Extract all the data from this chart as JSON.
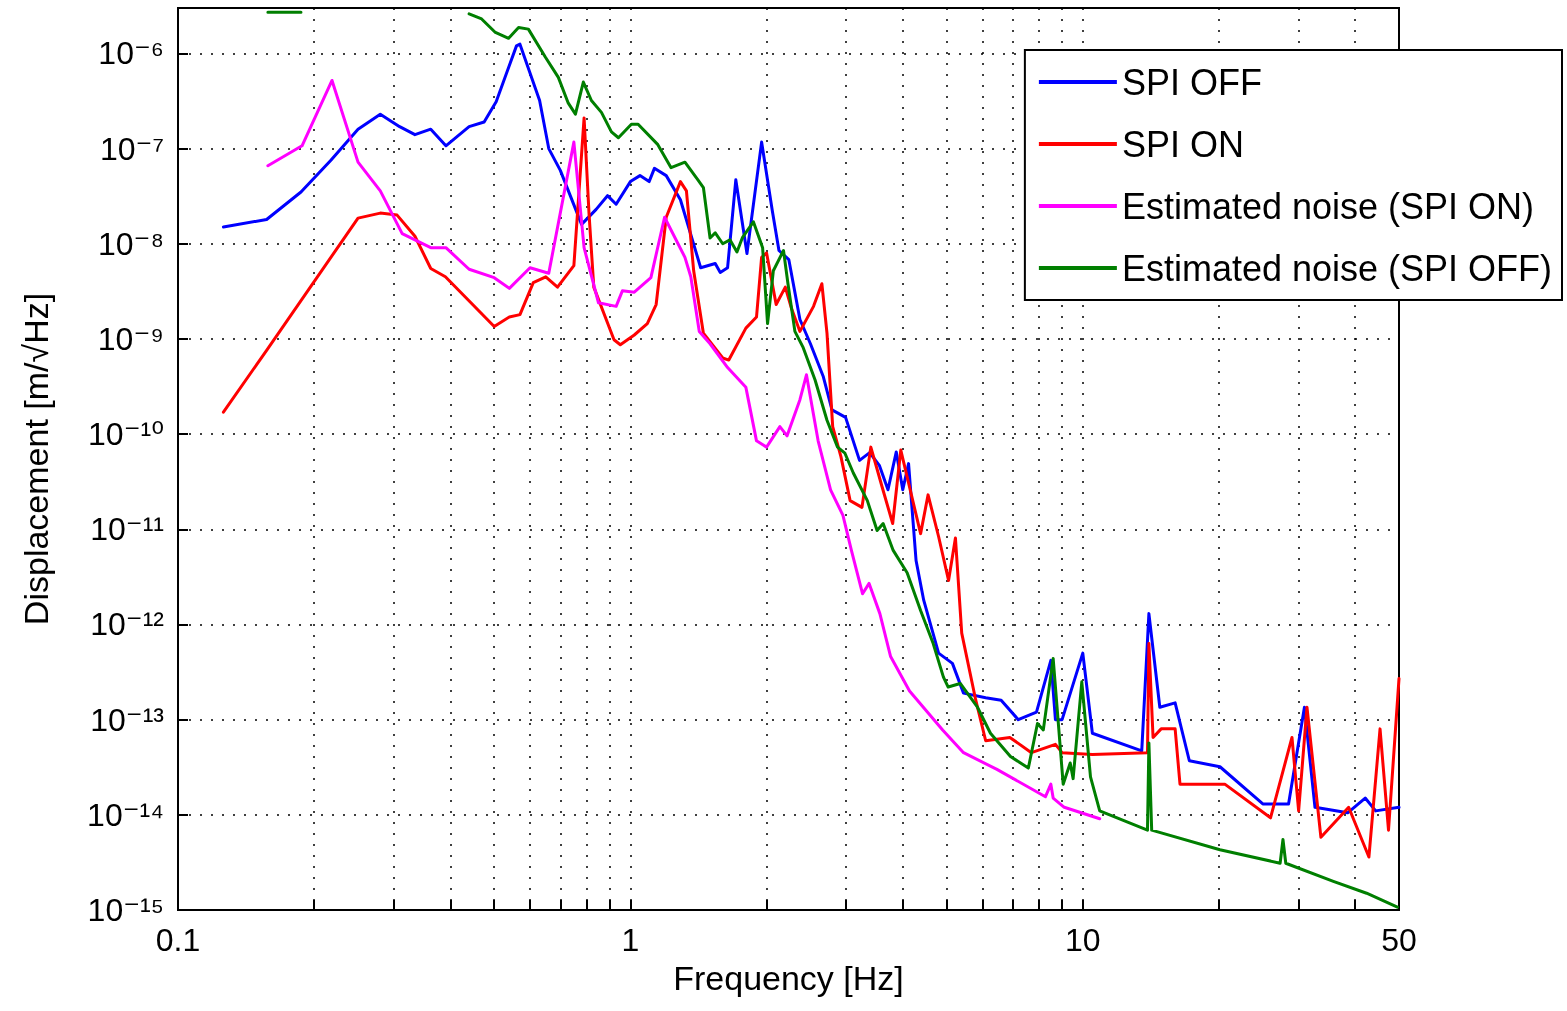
{
  "chart_data": {
    "type": "line",
    "xlabel": "Frequency [Hz]",
    "ylabel": "Displacement [m/√Hz]",
    "log": "xy",
    "grid": true,
    "legend": "top right",
    "marker": "none",
    "line_style": "solid",
    "xlim": [
      0.1,
      50
    ],
    "xticks": [
      0.1,
      {
        "value": 0.2,
        "label": null
      },
      {
        "value": 0.3,
        "label": null
      },
      {
        "value": 0.4,
        "label": null
      },
      {
        "value": 0.5,
        "label": null
      },
      {
        "value": 0.6,
        "label": null
      },
      {
        "value": 0.7,
        "label": null
      },
      {
        "value": 0.8,
        "label": null
      },
      {
        "value": 0.9,
        "label": null
      },
      1,
      {
        "value": 2,
        "label": null
      },
      {
        "value": 3,
        "label": null
      },
      {
        "value": 4,
        "label": null
      },
      {
        "value": 5,
        "label": null
      },
      {
        "value": 6,
        "label": null
      },
      {
        "value": 7,
        "label": null
      },
      {
        "value": 8,
        "label": null
      },
      {
        "value": 9,
        "label": null
      },
      10,
      {
        "value": 20,
        "label": null
      },
      {
        "value": 30,
        "label": null
      },
      {
        "value": 40,
        "label": null
      },
      50
    ],
    "ylim": [
      1e-15,
      3e-06
    ],
    "yticks": [
      {
        "value": 1e-15,
        "label": "10⁻¹⁵"
      },
      {
        "value": 1e-14,
        "label": "10⁻¹⁴"
      },
      {
        "value": 1e-13,
        "label": "10⁻¹³"
      },
      {
        "value": 1e-12,
        "label": "10⁻¹²"
      },
      {
        "value": 1e-11,
        "label": "10⁻¹¹"
      },
      {
        "value": 1e-10,
        "label": "10⁻¹⁰"
      },
      {
        "value": 1e-09,
        "label": "10⁻⁹"
      },
      {
        "value": 1e-08,
        "label": "10⁻⁸"
      },
      {
        "value": 1e-07,
        "label": "10⁻⁷"
      },
      {
        "value": 1e-06,
        "label": "10⁻⁶"
      }
    ],
    "series": [
      {
        "name": "SPI OFF",
        "color": "#0000ff",
        "x": [
          0.126,
          0.157,
          0.187,
          0.218,
          0.25,
          0.28,
          0.309,
          0.334,
          0.362,
          0.391,
          0.44,
          0.475,
          0.505,
          0.56,
          0.57,
          0.63,
          0.66,
          0.7,
          0.78,
          0.84,
          0.89,
          0.93,
          1.0,
          1.05,
          1.1,
          1.13,
          1.2,
          1.29,
          1.43,
          1.54,
          1.58,
          1.64,
          1.71,
          1.81,
          1.95,
          2.06,
          2.13,
          2.24,
          2.37,
          2.5,
          2.67,
          2.79,
          2.99,
          3.21,
          3.38,
          3.55,
          3.71,
          3.87,
          4.0,
          4.12,
          4.28,
          4.45,
          4.8,
          5.15,
          5.45,
          6.1,
          6.6,
          7.2,
          7.9,
          8.5,
          8.7,
          9.0,
          10.0,
          10.5,
          13.5,
          14.0,
          14.8,
          16.0,
          17.2,
          20.1,
          25.0,
          28.5,
          30.9,
          32.6,
          38.5,
          42.1,
          44.4,
          50
        ],
        "values": [
          1.5e-08,
          1.8e-08,
          3.5e-08,
          7.6e-08,
          1.6e-07,
          2.3e-07,
          1.7e-07,
          1.4e-07,
          1.6e-07,
          1.07e-07,
          1.7e-07,
          1.9e-07,
          3.1e-07,
          1.2e-06,
          1.25e-06,
          3.2e-07,
          1e-07,
          5.9e-08,
          1.6e-08,
          2.3e-08,
          3.2e-08,
          2.6e-08,
          4.5e-08,
          5.2e-08,
          4.5e-08,
          6.2e-08,
          5.2e-08,
          2.9e-08,
          5.6e-09,
          6.2e-09,
          5e-09,
          5.6e-09,
          4.7e-08,
          7.9e-09,
          1.17e-07,
          2.2e-08,
          8.5e-09,
          6.8e-09,
          1.6e-09,
          8.9e-10,
          4e-10,
          1.8e-10,
          1.5e-10,
          5.3e-11,
          6.4e-11,
          4.7e-11,
          2.6e-11,
          6.5e-11,
          2.6e-11,
          4.9e-11,
          4.7e-12,
          1.8e-12,
          5e-13,
          3.9e-13,
          1.9e-13,
          1.7e-13,
          1.6e-13,
          1e-13,
          1.2e-13,
          4.2e-13,
          1e-13,
          1e-13,
          5e-13,
          7.2e-14,
          4.7e-14,
          1.3e-12,
          1.35e-13,
          1.5e-13,
          3.7e-14,
          3.2e-14,
          1.3e-14,
          1.3e-14,
          1.35e-13,
          1.2e-14,
          1.05e-14,
          1.5e-14,
          1.1e-14,
          1.2e-14
        ]
      },
      {
        "name": "SPI ON",
        "color": "#ff0000",
        "x": [
          0.126,
          0.157,
          0.25,
          0.28,
          0.305,
          0.334,
          0.362,
          0.39,
          0.5,
          0.54,
          0.57,
          0.61,
          0.65,
          0.69,
          0.75,
          0.79,
          0.81,
          0.83,
          0.92,
          0.95,
          1.02,
          1.09,
          1.14,
          1.2,
          1.29,
          1.33,
          1.38,
          1.45,
          1.6,
          1.65,
          1.8,
          1.9,
          1.95,
          2.0,
          2.1,
          2.2,
          2.27,
          2.37,
          2.54,
          2.65,
          2.72,
          2.8,
          2.92,
          3.06,
          3.25,
          3.4,
          3.6,
          3.8,
          3.96,
          4.38,
          4.55,
          4.8,
          5.05,
          5.23,
          5.4,
          5.8,
          6.1,
          6.9,
          7.7,
          8.7,
          9.0,
          10.5,
          13.9,
          14.0,
          14.3,
          14.9,
          16.0,
          16.4,
          20.6,
          26.0,
          29.0,
          30.0,
          31.3,
          33.6,
          38.7,
          42.9,
          45.4,
          47.4,
          50
        ],
        "values": [
          1.7e-10,
          7.6e-10,
          1.86e-08,
          2.1e-08,
          2e-08,
          1.2e-08,
          5.5e-09,
          4.5e-09,
          1.35e-09,
          1.7e-09,
          1.8e-09,
          3.9e-09,
          4.5e-09,
          3.5e-09,
          5.9e-09,
          2.1e-07,
          2.1e-08,
          3.5e-09,
          9.8e-10,
          8.7e-10,
          1.1e-09,
          1.45e-09,
          2.3e-09,
          1.9e-08,
          4.5e-08,
          3.6e-08,
          5.2e-09,
          1.15e-09,
          6.3e-10,
          6e-10,
          1.3e-09,
          1.7e-09,
          7.2e-09,
          8e-09,
          2.3e-09,
          3.5e-09,
          2.1e-09,
          1.2e-09,
          2.2e-09,
          3.8e-09,
          1.15e-09,
          1.2e-10,
          5.8e-11,
          2e-11,
          1.7e-11,
          7.3e-11,
          2.8e-11,
          1.15e-11,
          6.8e-11,
          9e-12,
          2.3e-11,
          8.4e-12,
          2.9e-12,
          8.1e-12,
          8.1e-13,
          1.6e-13,
          6e-14,
          6.5e-14,
          4.5e-14,
          5.5e-14,
          4.5e-14,
          4.3e-14,
          4.5e-14,
          6.3e-13,
          6.5e-14,
          8e-14,
          8e-14,
          2.1e-14,
          2.1e-14,
          9.3e-15,
          6.5e-14,
          1.1e-14,
          1.35e-13,
          5.8e-15,
          1.2e-14,
          3.6e-15,
          8e-14,
          6.9e-15,
          2.7e-13
        ]
      },
      {
        "name": "Estimated noise (SPI ON)",
        "color": "#ff00ff",
        "x": [
          0.158,
          0.188,
          0.219,
          0.25,
          0.28,
          0.313,
          0.362,
          0.391,
          0.44,
          0.5,
          0.54,
          0.6,
          0.66,
          0.75,
          0.79,
          0.85,
          0.93,
          0.96,
          1.02,
          1.11,
          1.19,
          1.32,
          1.36,
          1.42,
          1.5,
          1.64,
          1.8,
          1.9,
          2.0,
          2.14,
          2.22,
          2.37,
          2.45,
          2.6,
          2.77,
          2.95,
          3.08,
          3.26,
          3.37,
          3.56,
          3.76,
          4.14,
          4.9,
          5.45,
          6.46,
          8.27,
          8.5,
          8.6,
          9.1,
          10.9
        ],
        "values": [
          6.6e-08,
          1.07e-07,
          5.2e-07,
          7.2e-08,
          3.6e-08,
          1.28e-08,
          9.1e-09,
          9.1e-09,
          5.4e-09,
          4.4e-09,
          3.4e-09,
          5.6e-09,
          4.9e-09,
          1.17e-07,
          9.1e-09,
          2.4e-09,
          2.2e-09,
          3.2e-09,
          3.1e-09,
          4.4e-09,
          1.9e-08,
          7.2e-09,
          4.5e-09,
          1.2e-09,
          8.9e-10,
          5e-10,
          3.1e-10,
          8.5e-11,
          7.3e-11,
          1.2e-10,
          9.6e-11,
          2.3e-10,
          4.2e-10,
          8.5e-11,
          2.6e-11,
          1.4e-11,
          6e-12,
          2.1e-12,
          2.7e-12,
          1.3e-12,
          4.6e-13,
          2e-13,
          7.8e-14,
          4.5e-14,
          3e-14,
          1.55e-14,
          2.1e-14,
          1.5e-14,
          1.2e-14,
          9.1e-15
        ]
      },
      {
        "name": "Estimated noise (SPI OFF)",
        "color": "#007f00",
        "x": [
          0.158,
          0.187,
          0.2,
          0.42,
          0.44,
          0.469,
          0.503,
          0.538,
          0.566,
          0.595,
          0.649,
          0.693,
          0.729,
          0.756,
          0.787,
          0.82,
          0.863,
          0.908,
          0.941,
          1.005,
          1.04,
          1.15,
          1.23,
          1.32,
          1.41,
          1.45,
          1.5,
          1.54,
          1.6,
          1.66,
          1.72,
          1.77,
          1.87,
          1.96,
          2.01,
          2.07,
          2.18,
          2.23,
          2.31,
          2.41,
          2.56,
          2.72,
          2.87,
          2.98,
          3.11,
          3.34,
          3.51,
          3.62,
          3.81,
          4.09,
          4.38,
          4.67,
          4.92,
          5.04,
          5.36,
          5.85,
          6.25,
          6.92,
          7.58,
          7.94,
          8.18,
          8.6,
          9.05,
          9.38,
          9.52,
          9.95,
          10.4,
          10.9,
          13.9,
          14.0,
          14.2,
          20.1,
          27.3,
          27.7,
          28.1,
          35.8,
          42.4,
          49.6
        ],
        "values": [
          2.7e-06,
          2.7e-06,
          null,
          null,
          2.6e-06,
          2.3e-06,
          1.66e-06,
          1.44e-06,
          1.87e-06,
          1.8e-06,
          9.1e-07,
          5.6e-07,
          3e-07,
          2.3e-07,
          5e-07,
          3.2e-07,
          2.4e-07,
          1.5e-07,
          1.3e-07,
          1.8e-07,
          1.8e-07,
          1.1e-07,
          6.3e-08,
          7.2e-08,
          4.7e-08,
          3.9e-08,
          1.15e-08,
          1.3e-08,
          1e-08,
          1.1e-08,
          8.2e-09,
          1.17e-08,
          1.7e-08,
          9.1e-09,
          1.45e-09,
          5.2e-09,
          8.5e-09,
          3.8e-09,
          1.2e-09,
          8.1e-10,
          3.7e-10,
          1.4e-10,
          7.3e-11,
          6.3e-11,
          3.9e-11,
          2e-11,
          9.7e-12,
          1.15e-11,
          6e-12,
          3.5e-12,
          1.4e-12,
          6.3e-13,
          2.8e-13,
          2.2e-13,
          2.4e-13,
          1.35e-13,
          7.2e-14,
          4.1e-14,
          3.1e-14,
          9.1e-14,
          7.8e-14,
          4.4e-13,
          2.1e-14,
          3.5e-14,
          2.4e-14,
          2.5e-13,
          2.5e-14,
          1.1e-14,
          6.9e-15,
          5.7e-14,
          6.9e-15,
          4.3e-15,
          3.1e-15,
          5.5e-15,
          3.1e-15,
          2e-15,
          1.5e-15,
          1.07e-15
        ]
      }
    ]
  }
}
